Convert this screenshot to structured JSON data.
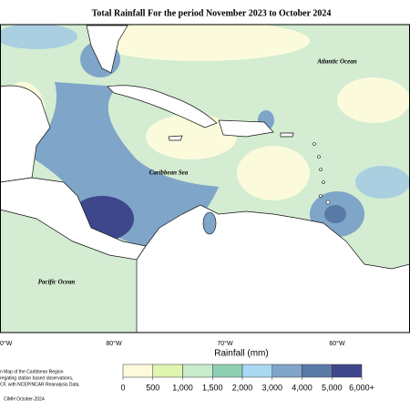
{
  "title": "Total Rainfall For the period November 2023 to October 2024",
  "map": {
    "labels": [
      "Atlantic Ocean",
      "Caribbean Sea",
      "Pacific Ocean"
    ],
    "longitudes": [
      "0°W",
      "80°W",
      "70°W",
      "60°W"
    ]
  },
  "legend": {
    "title": "Rainfall (mm)",
    "colors": [
      "#fbfbdc",
      "#dff5b0",
      "#c8ebcc",
      "#8fcfb4",
      "#a9d9f2",
      "#7fa5c8",
      "#5a7aa6",
      "#3f478c"
    ],
    "ticks": [
      "0",
      "500",
      "1,000",
      "1,500",
      "2,000",
      "3,000",
      "4,000",
      "5,000",
      "6,000+"
    ]
  },
  "notes": [
    "n Map of the Caribbean Region",
    "regating station based observations,",
    "CF, with NCEP/NCAR Reanalysis Data."
  ],
  "credit": "CIMH October-2024"
}
